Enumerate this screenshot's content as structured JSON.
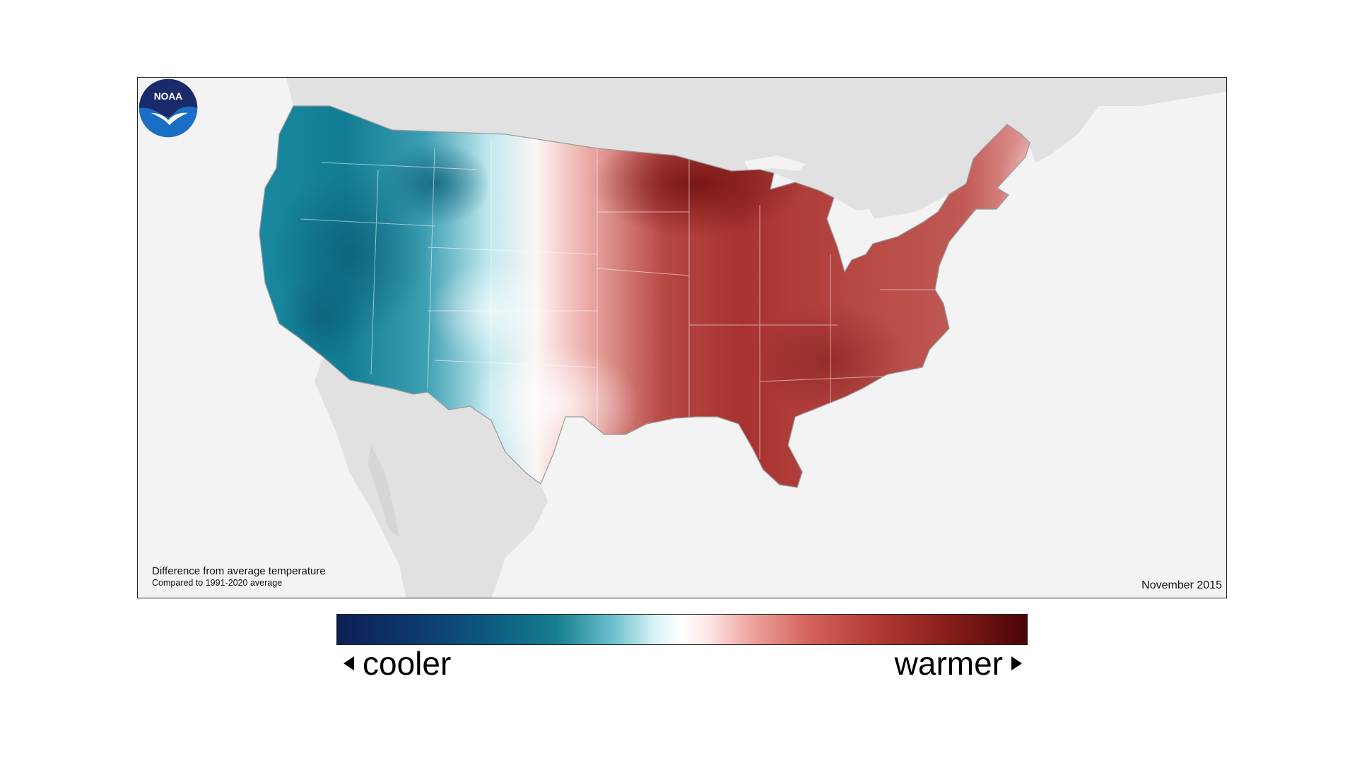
{
  "map": {
    "title_line1": "Difference from average temperature",
    "title_line2": "Compared to 1991-2020 average",
    "date": "November 2015",
    "logo_text": "NOAA",
    "land_color": "#e1e1e1",
    "ocean_color": "#f3f3f3"
  },
  "legend": {
    "cool_label": "cooler",
    "warm_label": "warmer",
    "cool_icon": "left-triangle-icon",
    "warm_icon": "right-triangle-icon",
    "colors": [
      "#0d1f55",
      "#16808f",
      "#ffffff",
      "#d4655e",
      "#4a0505"
    ]
  }
}
